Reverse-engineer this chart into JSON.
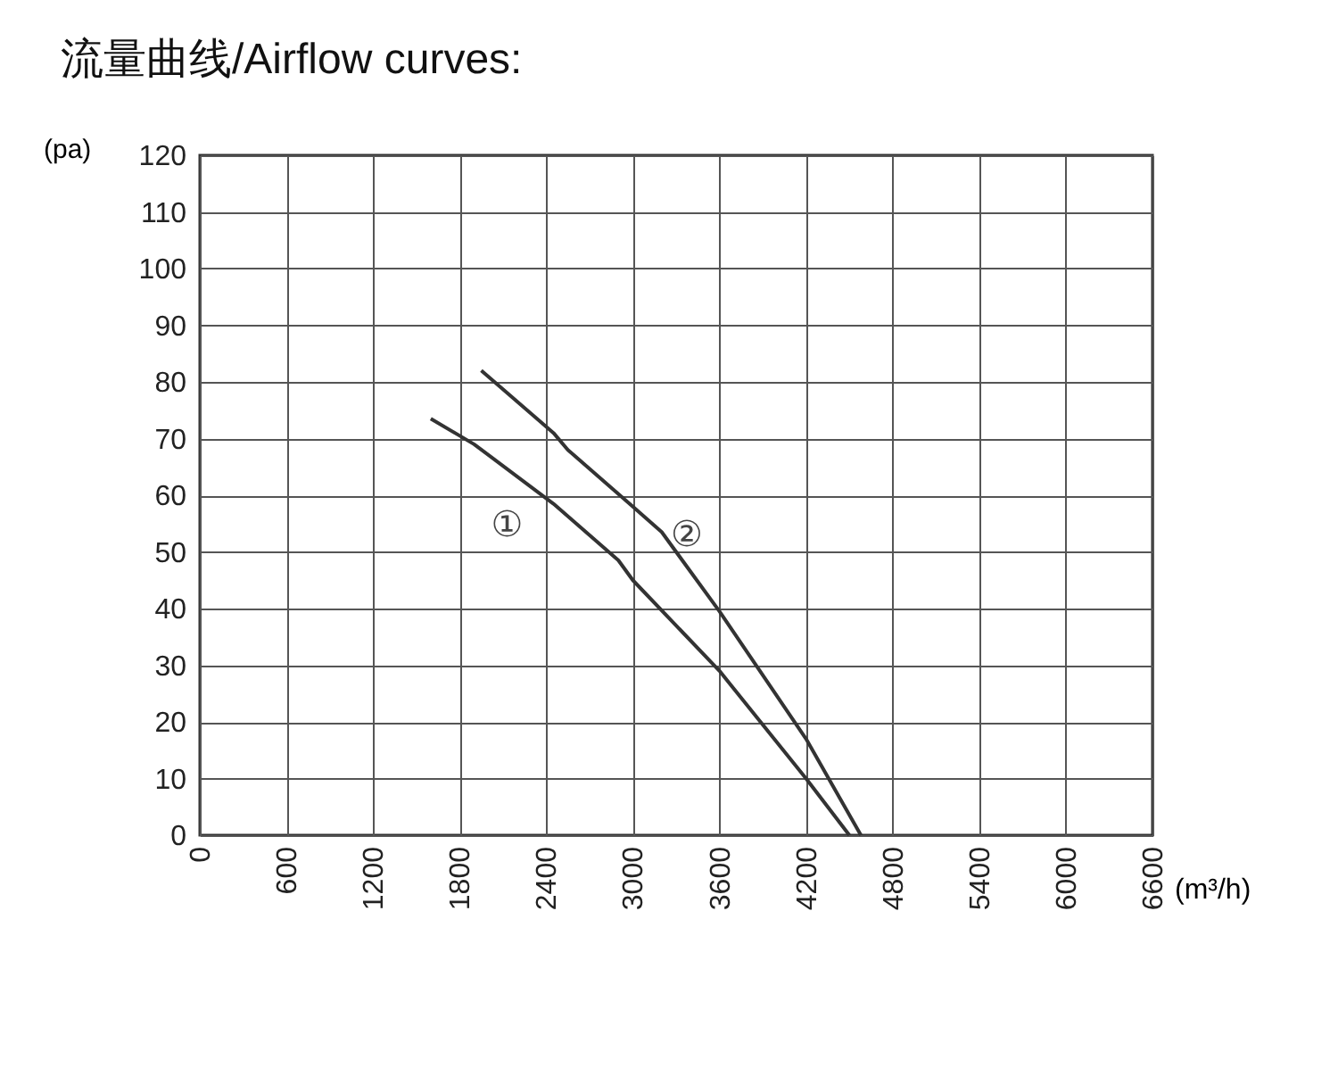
{
  "chart_data": {
    "type": "line",
    "title": "流量曲线/Airflow curves:",
    "xlabel": "(m³/h)",
    "ylabel": "(pa)",
    "xlim": [
      0,
      6600
    ],
    "xticks": [
      0,
      600,
      1200,
      1800,
      2400,
      3000,
      3600,
      4200,
      4800,
      5400,
      6000,
      6600
    ],
    "ylim": [
      0,
      120
    ],
    "yticks": [
      0,
      10,
      20,
      30,
      40,
      50,
      60,
      70,
      80,
      90,
      100,
      110,
      120
    ],
    "grid": true,
    "legend": false,
    "line_style": "solid",
    "marker": "none",
    "series": [
      {
        "name": "①",
        "color": "#333333",
        "x": [
          1600,
          1900,
          2450,
          2900,
          3000,
          3600,
          4200,
          4500
        ],
        "values": [
          73.5,
          69,
          58.5,
          48.5,
          45,
          29,
          10,
          0
        ]
      },
      {
        "name": "②",
        "color": "#333333",
        "x": [
          1950,
          2450,
          2550,
          3000,
          3200,
          3600,
          4200,
          4580
        ],
        "values": [
          82,
          71,
          68,
          58,
          53.5,
          39.5,
          17,
          0
        ]
      }
    ]
  }
}
